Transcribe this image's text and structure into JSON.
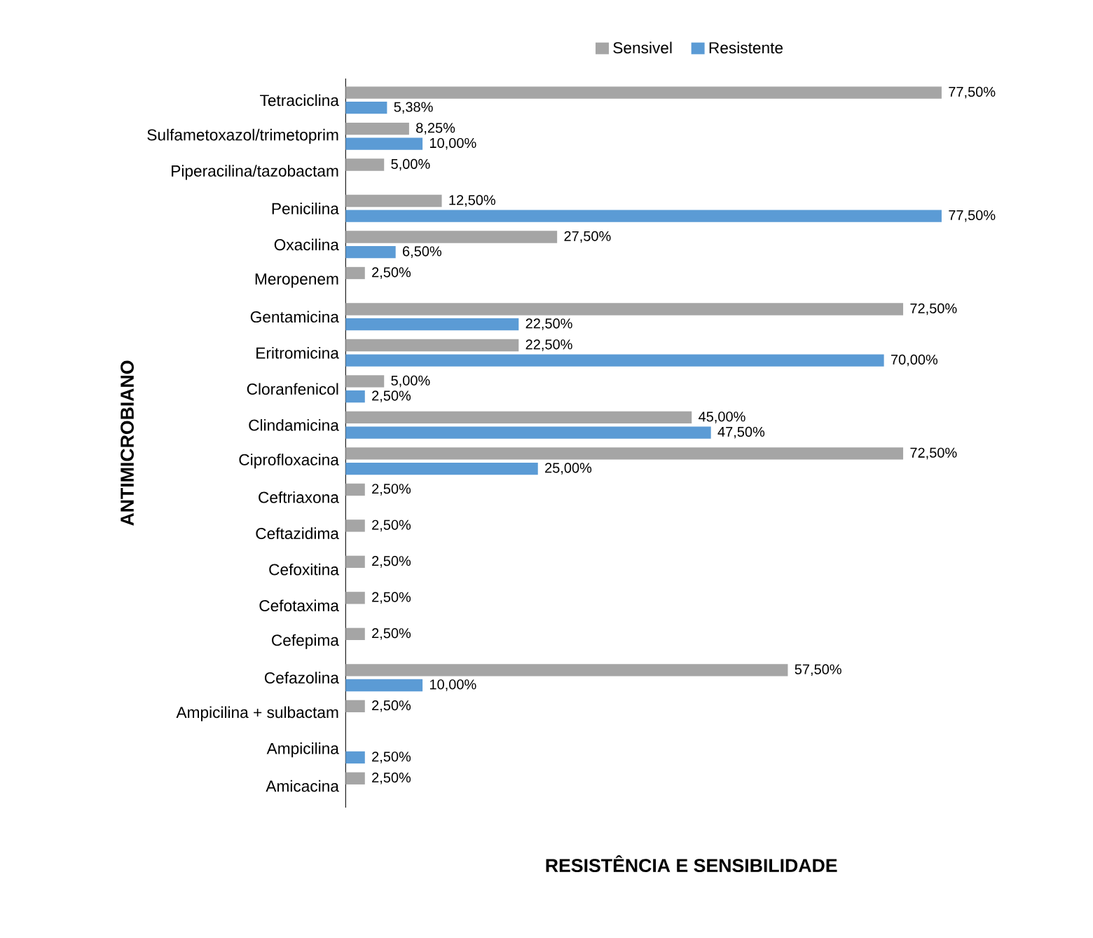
{
  "chart_data": {
    "type": "bar",
    "orientation": "horizontal",
    "xlabel": "RESISTÊNCIA E SENSIBILIDADE",
    "ylabel": "ANTIMICROBIANO",
    "categories": [
      "Tetraciclina",
      "Sulfametoxazol/trimetoprim",
      "Piperacilina/tazobactam",
      "Penicilina",
      "Oxacilina",
      "Meropenem",
      "Gentamicina",
      "Eritromicina",
      "Cloranfenicol",
      "Clindamicina",
      "Ciprofloxacina",
      "Ceftriaxona",
      "Ceftazidima",
      "Cefoxitina",
      "Cefotaxima",
      "Cefepima",
      "Cefazolina",
      "Ampicilina + sulbactam",
      "Ampicilina",
      "Amicacina"
    ],
    "series": [
      {
        "name": "Sensivel",
        "color": "#a5a5a5",
        "values": [
          77.5,
          8.25,
          5.0,
          12.5,
          27.5,
          2.5,
          72.5,
          22.5,
          5.0,
          45.0,
          72.5,
          2.5,
          2.5,
          2.5,
          2.5,
          2.5,
          57.5,
          2.5,
          null,
          2.5
        ],
        "value_labels": [
          "77,50%",
          "8,25%",
          "5,00%",
          "12,50%",
          "27,50%",
          "2,50%",
          "72,50%",
          "22,50%",
          "5,00%",
          "45,00%",
          "72,50%",
          "2,50%",
          "2,50%",
          "2,50%",
          "2,50%",
          "2,50%",
          "57,50%",
          "2,50%",
          null,
          "2,50%"
        ]
      },
      {
        "name": "Resistente",
        "color": "#5b9bd5",
        "values": [
          5.38,
          10.0,
          null,
          77.5,
          6.5,
          null,
          22.5,
          70.0,
          2.5,
          47.5,
          25.0,
          null,
          null,
          null,
          null,
          null,
          10.0,
          null,
          2.5,
          null
        ],
        "value_labels": [
          "5,38%",
          "10,00%",
          null,
          "77,50%",
          "6,50%",
          null,
          "22,50%",
          "70,00%",
          "2,50%",
          "47,50%",
          "25,00%",
          null,
          null,
          null,
          null,
          null,
          "10,00%",
          null,
          "2,50%",
          null
        ]
      }
    ],
    "legend": "top"
  }
}
